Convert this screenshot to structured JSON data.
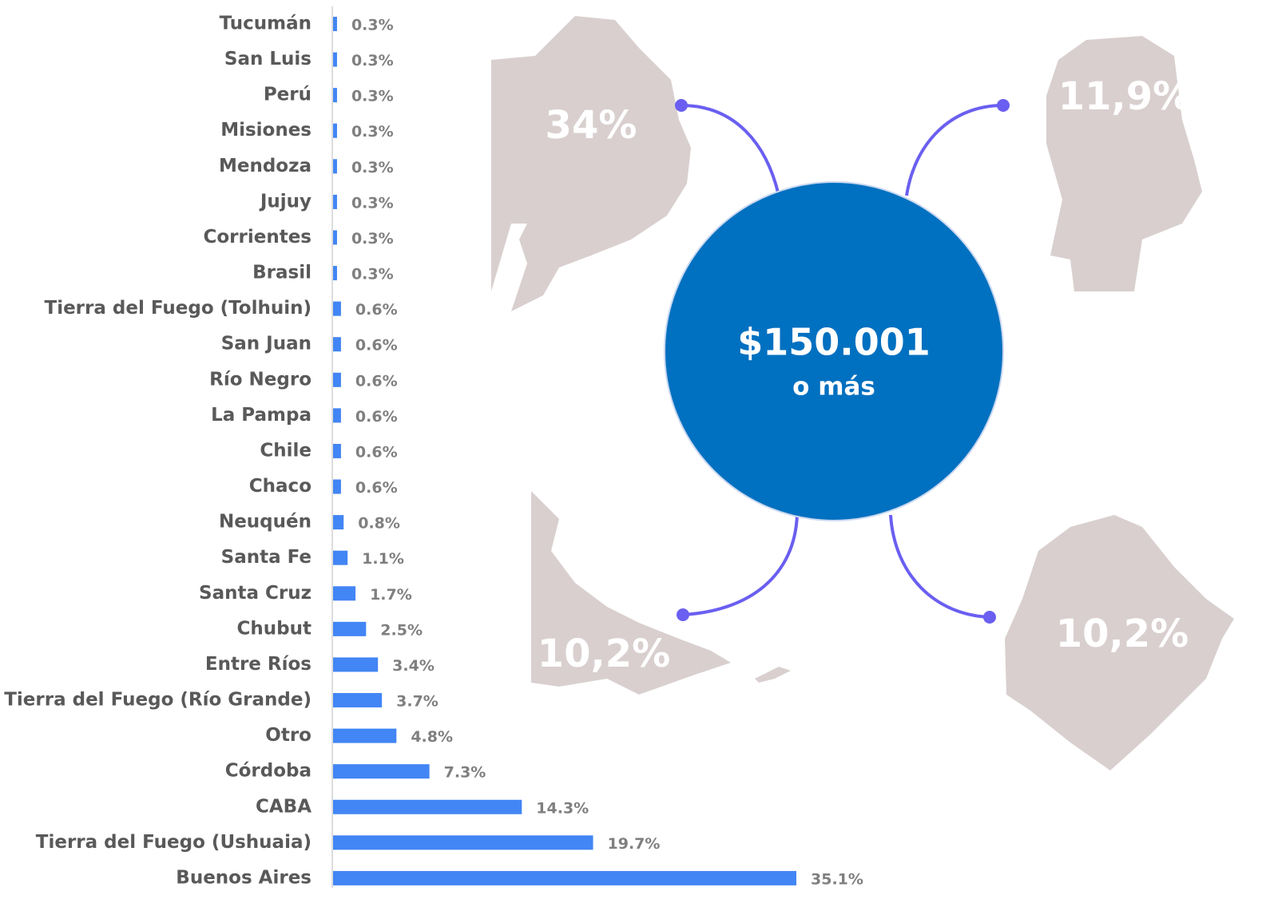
{
  "chart_data": {
    "type": "barh",
    "categories": [
      "Tucumán",
      "San Luis",
      "Perú",
      "Misiones",
      "Mendoza",
      "Jujuy",
      "Corrientes",
      "Brasil",
      "Tierra del Fuego (Tolhuin)",
      "San Juan",
      "Río Negro",
      "La Pampa",
      "Chile",
      "Chaco",
      "Neuquén",
      "Santa Fe",
      "Santa Cruz",
      "Chubut",
      "Entre Ríos",
      "Tierra del Fuego (Río Grande)",
      "Otro",
      "Córdoba",
      "CABA",
      "Tierra del Fuego (Ushuaia)",
      "Buenos Aires"
    ],
    "values": [
      0.3,
      0.3,
      0.3,
      0.3,
      0.3,
      0.3,
      0.3,
      0.3,
      0.6,
      0.6,
      0.6,
      0.6,
      0.6,
      0.6,
      0.8,
      1.1,
      1.7,
      2.5,
      3.4,
      3.7,
      4.8,
      7.3,
      14.3,
      19.7,
      35.1
    ],
    "value_labels": [
      "0.3%",
      "0.3%",
      "0.3%",
      "0.3%",
      "0.3%",
      "0.3%",
      "0.3%",
      "0.3%",
      "0.6%",
      "0.6%",
      "0.6%",
      "0.6%",
      "0.6%",
      "0.6%",
      "0.8%",
      "1.1%",
      "1.7%",
      "2.5%",
      "3.4%",
      "3.7%",
      "4.8%",
      "7.3%",
      "14.3%",
      "19.7%",
      "35.1%"
    ],
    "color": "#4285f4",
    "callout": {
      "title": "$150.001",
      "subtitle": "o más"
    },
    "annotations": [
      "34%",
      "11,9%",
      "10,2%",
      "10,2%"
    ]
  }
}
